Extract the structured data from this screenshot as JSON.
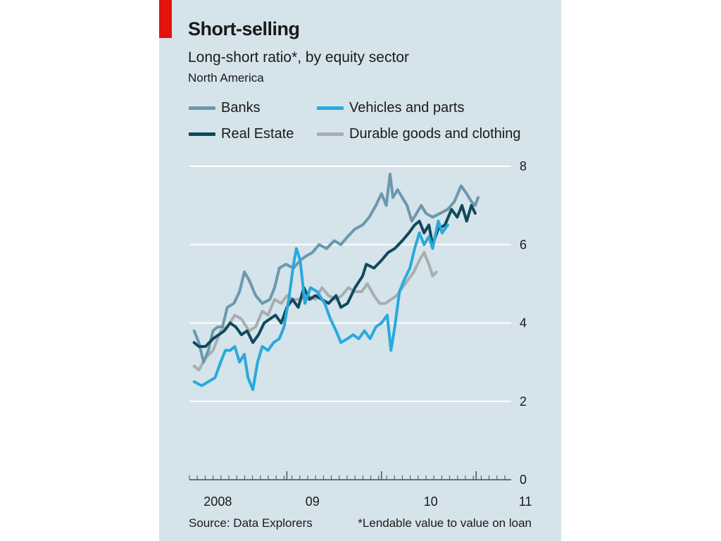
{
  "header": {
    "title": "Short-selling",
    "subtitle": "Long-short ratio*, by equity sector",
    "region": "North America"
  },
  "footer": {
    "source": "Source: Data Explorers",
    "note": "*Lendable value to value on loan"
  },
  "colors": {
    "background": "#d5e3ea",
    "accent_tag": "#e3120b",
    "banks": "#6b98ad",
    "real_estate": "#0f4a5c",
    "vehicles": "#29a9dd",
    "durable": "#a7aeb2"
  },
  "chart_data": {
    "type": "line",
    "x_unit": "year",
    "xlim": [
      2007.95,
      2011.35
    ],
    "ylim": [
      0,
      8
    ],
    "yticks": [
      0,
      2,
      4,
      6,
      8
    ],
    "ytick_labels": [
      "0",
      "2",
      "4",
      "6",
      "8"
    ],
    "xticks": [
      2008.25,
      2009.25,
      2010.5,
      2011.5
    ],
    "xtick_labels": [
      "2008",
      "09",
      "10",
      "11"
    ],
    "grid": true,
    "legend_position": "top",
    "series": [
      {
        "name": "Banks",
        "color_key": "banks",
        "points": [
          [
            2008.0,
            3.8
          ],
          [
            2008.05,
            3.5
          ],
          [
            2008.1,
            3.0
          ],
          [
            2008.15,
            3.3
          ],
          [
            2008.2,
            3.8
          ],
          [
            2008.25,
            3.9
          ],
          [
            2008.3,
            3.9
          ],
          [
            2008.35,
            4.4
          ],
          [
            2008.42,
            4.5
          ],
          [
            2008.48,
            4.8
          ],
          [
            2008.53,
            5.3
          ],
          [
            2008.58,
            5.1
          ],
          [
            2008.65,
            4.7
          ],
          [
            2008.72,
            4.5
          ],
          [
            2008.8,
            4.6
          ],
          [
            2008.85,
            4.9
          ],
          [
            2008.9,
            5.4
          ],
          [
            2008.97,
            5.5
          ],
          [
            2009.05,
            5.4
          ],
          [
            2009.12,
            5.6
          ],
          [
            2009.18,
            5.7
          ],
          [
            2009.25,
            5.8
          ],
          [
            2009.32,
            6.0
          ],
          [
            2009.4,
            5.9
          ],
          [
            2009.48,
            6.1
          ],
          [
            2009.55,
            6.0
          ],
          [
            2009.62,
            6.2
          ],
          [
            2009.7,
            6.4
          ],
          [
            2009.78,
            6.5
          ],
          [
            2009.85,
            6.7
          ],
          [
            2009.92,
            7.0
          ],
          [
            2009.98,
            7.3
          ],
          [
            2010.03,
            7.0
          ],
          [
            2010.07,
            7.8
          ],
          [
            2010.1,
            7.2
          ],
          [
            2010.15,
            7.4
          ],
          [
            2010.2,
            7.2
          ],
          [
            2010.25,
            7.0
          ],
          [
            2010.3,
            6.6
          ],
          [
            2010.35,
            6.8
          ],
          [
            2010.4,
            7.0
          ],
          [
            2010.45,
            6.8
          ],
          [
            2010.52,
            6.7
          ],
          [
            2010.6,
            6.8
          ],
          [
            2010.68,
            6.9
          ],
          [
            2010.75,
            7.1
          ],
          [
            2010.82,
            7.5
          ],
          [
            2010.88,
            7.3
          ],
          [
            2010.93,
            7.1
          ],
          [
            2010.97,
            7.0
          ],
          [
            2011.0,
            7.2
          ]
        ]
      },
      {
        "name": "Real Estate",
        "color_key": "real_estate",
        "points": [
          [
            2008.0,
            3.5
          ],
          [
            2008.05,
            3.4
          ],
          [
            2008.12,
            3.4
          ],
          [
            2008.2,
            3.6
          ],
          [
            2008.26,
            3.7
          ],
          [
            2008.32,
            3.8
          ],
          [
            2008.38,
            4.0
          ],
          [
            2008.44,
            3.9
          ],
          [
            2008.5,
            3.7
          ],
          [
            2008.56,
            3.8
          ],
          [
            2008.62,
            3.5
          ],
          [
            2008.68,
            3.7
          ],
          [
            2008.74,
            4.0
          ],
          [
            2008.8,
            4.1
          ],
          [
            2008.86,
            4.2
          ],
          [
            2008.92,
            4.0
          ],
          [
            2008.98,
            4.4
          ],
          [
            2009.04,
            4.6
          ],
          [
            2009.1,
            4.4
          ],
          [
            2009.16,
            4.9
          ],
          [
            2009.22,
            4.6
          ],
          [
            2009.28,
            4.7
          ],
          [
            2009.35,
            4.6
          ],
          [
            2009.42,
            4.5
          ],
          [
            2009.5,
            4.7
          ],
          [
            2009.55,
            4.4
          ],
          [
            2009.62,
            4.5
          ],
          [
            2009.7,
            4.9
          ],
          [
            2009.78,
            5.2
          ],
          [
            2009.82,
            5.5
          ],
          [
            2009.9,
            5.4
          ],
          [
            2009.98,
            5.6
          ],
          [
            2010.05,
            5.8
          ],
          [
            2010.12,
            5.9
          ],
          [
            2010.2,
            6.1
          ],
          [
            2010.27,
            6.3
          ],
          [
            2010.33,
            6.5
          ],
          [
            2010.38,
            6.6
          ],
          [
            2010.43,
            6.3
          ],
          [
            2010.48,
            6.5
          ],
          [
            2010.52,
            6.0
          ],
          [
            2010.58,
            6.4
          ],
          [
            2010.65,
            6.5
          ],
          [
            2010.72,
            6.9
          ],
          [
            2010.78,
            6.7
          ],
          [
            2010.83,
            7.0
          ],
          [
            2010.88,
            6.6
          ],
          [
            2010.93,
            7.0
          ],
          [
            2010.97,
            6.8
          ]
        ]
      },
      {
        "name": "Vehicles and parts",
        "color_key": "vehicles",
        "points": [
          [
            2008.0,
            2.5
          ],
          [
            2008.08,
            2.4
          ],
          [
            2008.15,
            2.5
          ],
          [
            2008.22,
            2.6
          ],
          [
            2008.28,
            3.0
          ],
          [
            2008.33,
            3.3
          ],
          [
            2008.38,
            3.3
          ],
          [
            2008.43,
            3.4
          ],
          [
            2008.48,
            3.0
          ],
          [
            2008.53,
            3.2
          ],
          [
            2008.57,
            2.6
          ],
          [
            2008.62,
            2.3
          ],
          [
            2008.67,
            3.0
          ],
          [
            2008.72,
            3.4
          ],
          [
            2008.78,
            3.3
          ],
          [
            2008.84,
            3.5
          ],
          [
            2008.9,
            3.6
          ],
          [
            2008.95,
            3.9
          ],
          [
            2009.0,
            4.6
          ],
          [
            2009.05,
            5.5
          ],
          [
            2009.08,
            5.9
          ],
          [
            2009.12,
            5.6
          ],
          [
            2009.17,
            4.5
          ],
          [
            2009.23,
            4.9
          ],
          [
            2009.3,
            4.8
          ],
          [
            2009.38,
            4.5
          ],
          [
            2009.44,
            4.1
          ],
          [
            2009.5,
            3.8
          ],
          [
            2009.55,
            3.5
          ],
          [
            2009.62,
            3.6
          ],
          [
            2009.68,
            3.7
          ],
          [
            2009.74,
            3.6
          ],
          [
            2009.8,
            3.8
          ],
          [
            2009.86,
            3.6
          ],
          [
            2009.92,
            3.9
          ],
          [
            2009.98,
            4.0
          ],
          [
            2010.04,
            4.2
          ],
          [
            2010.08,
            3.3
          ],
          [
            2010.12,
            3.9
          ],
          [
            2010.17,
            4.8
          ],
          [
            2010.22,
            5.1
          ],
          [
            2010.28,
            5.4
          ],
          [
            2010.33,
            5.9
          ],
          [
            2010.38,
            6.3
          ],
          [
            2010.43,
            6.0
          ],
          [
            2010.48,
            6.2
          ],
          [
            2010.52,
            5.9
          ],
          [
            2010.58,
            6.6
          ],
          [
            2010.62,
            6.3
          ],
          [
            2010.68,
            6.5
          ]
        ]
      },
      {
        "name": "Durable goods and clothing",
        "color_key": "durable",
        "points": [
          [
            2008.0,
            2.9
          ],
          [
            2008.05,
            2.8
          ],
          [
            2008.12,
            3.1
          ],
          [
            2008.2,
            3.3
          ],
          [
            2008.28,
            3.8
          ],
          [
            2008.35,
            3.9
          ],
          [
            2008.43,
            4.2
          ],
          [
            2008.5,
            4.1
          ],
          [
            2008.58,
            3.8
          ],
          [
            2008.65,
            3.9
          ],
          [
            2008.72,
            4.3
          ],
          [
            2008.78,
            4.2
          ],
          [
            2008.85,
            4.6
          ],
          [
            2008.92,
            4.5
          ],
          [
            2008.98,
            4.7
          ],
          [
            2009.05,
            4.6
          ],
          [
            2009.12,
            4.6
          ],
          [
            2009.2,
            4.7
          ],
          [
            2009.28,
            4.6
          ],
          [
            2009.35,
            4.9
          ],
          [
            2009.42,
            4.7
          ],
          [
            2009.5,
            4.6
          ],
          [
            2009.56,
            4.7
          ],
          [
            2009.63,
            4.9
          ],
          [
            2009.7,
            4.8
          ],
          [
            2009.77,
            4.8
          ],
          [
            2009.83,
            5.0
          ],
          [
            2009.9,
            4.7
          ],
          [
            2009.96,
            4.5
          ],
          [
            2010.02,
            4.5
          ],
          [
            2010.08,
            4.6
          ],
          [
            2010.14,
            4.7
          ],
          [
            2010.2,
            4.9
          ],
          [
            2010.26,
            5.1
          ],
          [
            2010.32,
            5.3
          ],
          [
            2010.38,
            5.6
          ],
          [
            2010.43,
            5.8
          ],
          [
            2010.48,
            5.5
          ],
          [
            2010.52,
            5.2
          ],
          [
            2010.56,
            5.3
          ]
        ]
      }
    ]
  },
  "legend": [
    {
      "label": "Banks",
      "color_key": "banks"
    },
    {
      "label": "Vehicles and parts",
      "color_key": "vehicles"
    },
    {
      "label": "Real Estate",
      "color_key": "real_estate"
    },
    {
      "label": "Durable goods and clothing",
      "color_key": "durable"
    }
  ]
}
